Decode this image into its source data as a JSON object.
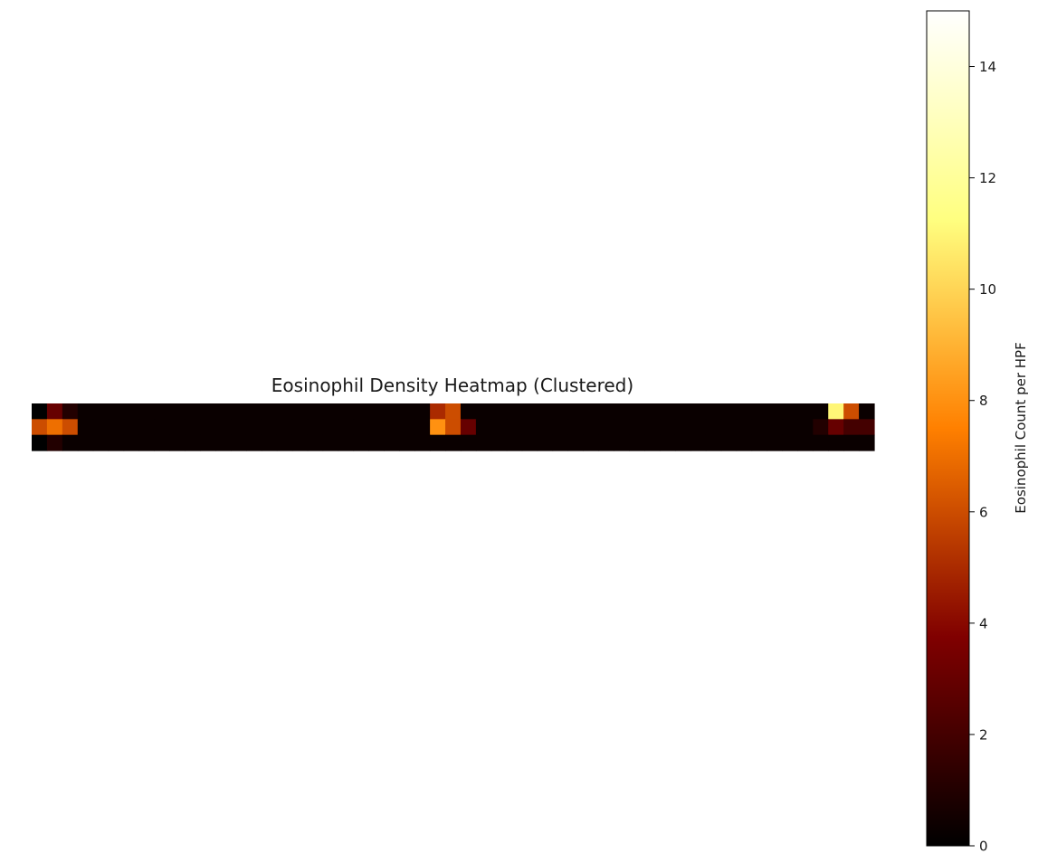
{
  "chart_data": {
    "type": "heatmap",
    "title": "Eosinophil Density Heatmap (Clustered)",
    "xlabel": "",
    "ylabel": "",
    "colormap": "afmhot",
    "value_range": [
      0,
      15
    ],
    "n_rows": 3,
    "n_cols": 55,
    "rows": [
      [
        0,
        3,
        1,
        0.3,
        0.3,
        0.3,
        0.3,
        0.3,
        0.3,
        0.3,
        0.3,
        0.3,
        0.3,
        0.3,
        0.3,
        0.3,
        0.3,
        0.3,
        0.3,
        0.3,
        0.3,
        0.3,
        0.3,
        0.3,
        0.3,
        0.3,
        5,
        6,
        0.3,
        0.3,
        0.3,
        0.3,
        0.3,
        0.3,
        0.3,
        0.3,
        0.3,
        0.3,
        0.3,
        0.3,
        0.3,
        0.3,
        0.3,
        0.3,
        0.3,
        0.3,
        0.3,
        0.3,
        0.3,
        0.3,
        0.3,
        0.3,
        11,
        6,
        0.3
      ],
      [
        6,
        7,
        6,
        0.3,
        0.3,
        0.3,
        0.3,
        0.3,
        0.3,
        0.3,
        0.3,
        0.3,
        0.3,
        0.3,
        0.3,
        0.3,
        0.3,
        0.3,
        0.3,
        0.3,
        0.3,
        0.3,
        0.3,
        0.3,
        0.3,
        0.3,
        8,
        6,
        3,
        0.3,
        0.3,
        0.3,
        0.3,
        0.3,
        0.3,
        0.3,
        0.3,
        0.3,
        0.3,
        0.3,
        0.3,
        0.3,
        0.3,
        0.3,
        0.3,
        0.3,
        0.3,
        0.3,
        0.3,
        0.3,
        0.3,
        1,
        3,
        2,
        2
      ],
      [
        0,
        1,
        0.3,
        0.3,
        0.3,
        0.3,
        0.3,
        0.3,
        0.3,
        0.3,
        0.3,
        0.3,
        0.3,
        0.3,
        0.3,
        0.3,
        0.3,
        0.3,
        0.3,
        0.3,
        0.3,
        0.3,
        0.3,
        0.3,
        0.3,
        0.3,
        0.3,
        0.3,
        0.3,
        0.3,
        0.3,
        0.3,
        0.3,
        0.3,
        0.3,
        0.3,
        0.3,
        0.3,
        0.3,
        0.3,
        0.3,
        0.3,
        0.3,
        0.3,
        0.3,
        0.3,
        0.3,
        0.3,
        0.3,
        0.3,
        0.3,
        0.3,
        0.3,
        0.3,
        0.3
      ]
    ],
    "colorbar": {
      "label": "Eosinophil Count per HPF",
      "ticks": [
        0,
        2,
        4,
        6,
        8,
        10,
        12,
        14
      ]
    }
  }
}
